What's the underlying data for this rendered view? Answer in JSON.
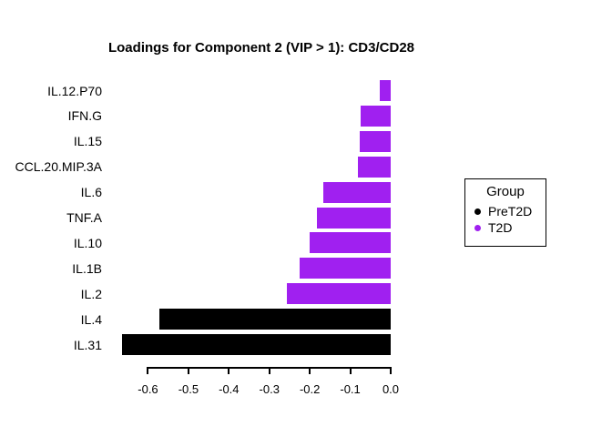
{
  "chart_data": {
    "type": "bar",
    "orientation": "horizontal",
    "title": "Loadings for Component 2 (VIP > 1): CD3/CD28",
    "categories": [
      "IL.12.P70",
      "IFN.G",
      "IL.15",
      "CCL.20.MIP.3A",
      "IL.6",
      "TNF.A",
      "IL.10",
      "IL.1B",
      "IL.2",
      "IL.4",
      "IL.31"
    ],
    "values": [
      -0.027,
      -0.074,
      -0.077,
      -0.081,
      -0.167,
      -0.183,
      -0.201,
      -0.225,
      -0.256,
      -0.571,
      -0.665
    ],
    "groups": [
      "T2D",
      "T2D",
      "T2D",
      "T2D",
      "T2D",
      "T2D",
      "T2D",
      "T2D",
      "T2D",
      "PreT2D",
      "PreT2D"
    ],
    "group_colors": {
      "PreT2D": "#000000",
      "T2D": "#A020F0"
    },
    "xlabel": "",
    "ylabel": "",
    "xlim": [
      -0.6,
      0.0
    ],
    "x_ticks": [
      -0.6,
      -0.5,
      -0.4,
      -0.3,
      -0.2,
      -0.1,
      0.0
    ],
    "x_tick_labels": [
      "-0.6",
      "-0.5",
      "-0.4",
      "-0.3",
      "-0.2",
      "-0.1",
      "0.0"
    ],
    "grid": false,
    "legend": {
      "title": "Group",
      "position": "right",
      "items": [
        {
          "label": "PreT2D",
          "color": "#000000"
        },
        {
          "label": "T2D",
          "color": "#A020F0"
        }
      ]
    }
  }
}
